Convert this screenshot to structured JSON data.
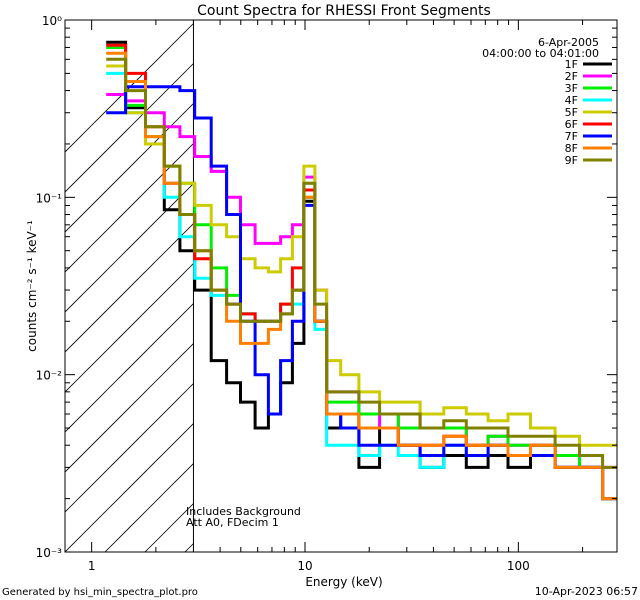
{
  "chart_data": {
    "type": "line",
    "title": "Count Spectra for RHESSI Front Segments",
    "xlabel": "Energy (keV)",
    "ylabel": "counts cm⁻² s⁻¹ keV⁻¹",
    "x_scale": "log",
    "y_scale": "log",
    "xlim": [
      0.75,
      290
    ],
    "ylim": [
      0.001,
      1.0
    ],
    "x_ticks": [
      {
        "value": 1,
        "label": "1"
      },
      {
        "value": 10,
        "label": "10"
      },
      {
        "value": 100,
        "label": "100"
      }
    ],
    "y_ticks": [
      {
        "value": 1,
        "label": "10⁰"
      },
      {
        "value": 0.1,
        "label": "10⁻¹"
      },
      {
        "value": 0.01,
        "label": "10⁻²"
      },
      {
        "value": 0.001,
        "label": "10⁻³"
      }
    ],
    "date": "6-Apr-2005",
    "time_range": "04:00:00 to 04:01:00",
    "annotations": [
      "Includes Background",
      "Att A0, FDecim 1"
    ],
    "attenuator_edge_kev": 3.0,
    "footer_left": "Generated by hsi_min_spectra_plot.pro",
    "footer_right": "10-Apr-2023 06:57",
    "series": [
      {
        "name": "1F",
        "color": "#000000",
        "x": [
          1.3,
          1.6,
          2.0,
          2.4,
          2.8,
          3.3,
          4.0,
          4.6,
          5.4,
          6.3,
          7.2,
          8.2,
          9.3,
          10.5,
          11.8,
          13.5,
          16,
          20,
          25,
          30,
          40,
          50,
          65,
          80,
          100,
          130,
          170,
          220,
          280
        ],
        "y": [
          0.75,
          0.32,
          0.2,
          0.085,
          0.05,
          0.03,
          0.012,
          0.009,
          0.007,
          0.005,
          0.006,
          0.009,
          0.015,
          0.095,
          0.02,
          0.005,
          0.006,
          0.003,
          0.005,
          0.004,
          0.003,
          0.0035,
          0.003,
          0.0035,
          0.003,
          0.004,
          0.003,
          0.003,
          0.002
        ]
      },
      {
        "name": "2F",
        "color": "#ff00ff",
        "x": [
          1.3,
          1.6,
          2.0,
          2.4,
          2.8,
          3.3,
          4.0,
          4.6,
          5.4,
          6.3,
          7.2,
          8.2,
          9.3,
          10.5,
          11.8,
          13.5,
          16,
          20,
          25,
          30,
          40,
          50,
          65,
          80,
          100,
          130,
          170,
          220,
          280
        ],
        "y": [
          0.38,
          0.35,
          0.3,
          0.25,
          0.22,
          0.17,
          0.14,
          0.1,
          0.07,
          0.055,
          0.055,
          0.06,
          0.07,
          0.13,
          0.03,
          0.008,
          0.008,
          0.006,
          0.005,
          0.006,
          0.005,
          0.005,
          0.004,
          0.0045,
          0.004,
          0.004,
          0.0035,
          0.003,
          0.003
        ]
      },
      {
        "name": "3F",
        "color": "#00ee00",
        "x": [
          1.3,
          1.6,
          2.0,
          2.4,
          2.8,
          3.3,
          4.0,
          4.6,
          5.4,
          6.3,
          7.2,
          8.2,
          9.3,
          10.5,
          11.8,
          13.5,
          16,
          20,
          25,
          30,
          40,
          50,
          65,
          80,
          100,
          130,
          170,
          220,
          280
        ],
        "y": [
          0.7,
          0.33,
          0.22,
          0.15,
          0.12,
          0.07,
          0.04,
          0.028,
          0.022,
          0.02,
          0.02,
          0.025,
          0.03,
          0.1,
          0.02,
          0.007,
          0.007,
          0.006,
          0.006,
          0.005,
          0.005,
          0.005,
          0.004,
          0.0045,
          0.004,
          0.004,
          0.0035,
          0.003,
          0.002
        ]
      },
      {
        "name": "4F",
        "color": "#00ffff",
        "x": [
          1.3,
          1.6,
          2.0,
          2.4,
          2.8,
          3.3,
          4.0,
          4.6,
          5.4,
          6.3,
          7.2,
          8.2,
          9.3,
          10.5,
          11.8,
          13.5,
          16,
          20,
          25,
          30,
          40,
          50,
          65,
          80,
          100,
          130,
          170,
          220,
          280
        ],
        "y": [
          0.5,
          0.3,
          0.2,
          0.1,
          0.06,
          0.035,
          0.028,
          0.025,
          0.022,
          0.02,
          0.02,
          0.022,
          0.025,
          0.12,
          0.018,
          0.004,
          0.004,
          0.0035,
          0.004,
          0.0035,
          0.003,
          0.004,
          0.0035,
          0.004,
          0.0035,
          0.004,
          0.003,
          0.003,
          0.002
        ]
      },
      {
        "name": "5F",
        "color": "#cccc00",
        "x": [
          1.3,
          1.6,
          2.0,
          2.4,
          2.8,
          3.3,
          4.0,
          4.6,
          5.4,
          6.3,
          7.2,
          8.2,
          9.3,
          10.5,
          11.8,
          13.5,
          16,
          20,
          25,
          30,
          40,
          50,
          65,
          80,
          100,
          130,
          170,
          220,
          280
        ],
        "y": [
          0.55,
          0.3,
          0.2,
          0.15,
          0.12,
          0.09,
          0.07,
          0.06,
          0.045,
          0.04,
          0.038,
          0.045,
          0.06,
          0.15,
          0.03,
          0.012,
          0.01,
          0.008,
          0.007,
          0.007,
          0.006,
          0.0065,
          0.006,
          0.0055,
          0.006,
          0.005,
          0.0045,
          0.004,
          0.004
        ]
      },
      {
        "name": "6F",
        "color": "#ff0000",
        "x": [
          1.3,
          1.6,
          2.0,
          2.4,
          2.8,
          3.3,
          4.0,
          4.6,
          5.4,
          6.3,
          7.2,
          8.2,
          9.3,
          10.5,
          11.8,
          13.5,
          16,
          20,
          25,
          30,
          40,
          50,
          65,
          80,
          100,
          130,
          170,
          220,
          280
        ],
        "y": [
          0.72,
          0.5,
          0.25,
          0.12,
          0.08,
          0.045,
          0.03,
          0.025,
          0.022,
          0.02,
          0.02,
          0.025,
          0.04,
          0.11,
          0.02,
          0.006,
          0.006,
          0.005,
          0.005,
          0.004,
          0.004,
          0.0045,
          0.004,
          0.004,
          0.0035,
          0.004,
          0.003,
          0.003,
          0.002
        ]
      },
      {
        "name": "7F",
        "color": "#0000ff",
        "x": [
          1.3,
          1.6,
          2.0,
          2.4,
          2.8,
          3.3,
          4.0,
          4.6,
          5.4,
          6.3,
          7.2,
          8.2,
          9.3,
          10.5,
          11.8,
          13.5,
          16,
          20,
          25,
          30,
          40,
          50,
          65,
          80,
          100,
          130,
          170,
          220,
          280
        ],
        "y": [
          0.3,
          0.42,
          0.42,
          0.42,
          0.4,
          0.28,
          0.15,
          0.08,
          0.02,
          0.01,
          0.006,
          0.012,
          0.02,
          0.09,
          0.02,
          0.006,
          0.005,
          0.004,
          0.004,
          0.004,
          0.0035,
          0.004,
          0.0035,
          0.004,
          0.0035,
          0.0035,
          0.003,
          0.003,
          0.002
        ]
      },
      {
        "name": "8F",
        "color": "#ff8000",
        "x": [
          1.3,
          1.6,
          2.0,
          2.4,
          2.8,
          3.3,
          4.0,
          4.6,
          5.4,
          6.3,
          7.2,
          8.2,
          9.3,
          10.5,
          11.8,
          13.5,
          16,
          20,
          25,
          30,
          40,
          50,
          65,
          80,
          100,
          130,
          170,
          220,
          280
        ],
        "y": [
          0.65,
          0.45,
          0.22,
          0.12,
          0.08,
          0.05,
          0.03,
          0.02,
          0.015,
          0.015,
          0.018,
          0.022,
          0.03,
          0.1,
          0.02,
          0.006,
          0.006,
          0.005,
          0.005,
          0.004,
          0.004,
          0.0045,
          0.004,
          0.004,
          0.0035,
          0.004,
          0.003,
          0.003,
          0.002
        ]
      },
      {
        "name": "9F",
        "color": "#808000",
        "x": [
          1.3,
          1.6,
          2.0,
          2.4,
          2.8,
          3.3,
          4.0,
          4.6,
          5.4,
          6.3,
          7.2,
          8.2,
          9.3,
          10.5,
          11.8,
          13.5,
          16,
          20,
          25,
          30,
          40,
          50,
          65,
          80,
          100,
          130,
          170,
          220,
          280
        ],
        "y": [
          0.6,
          0.4,
          0.25,
          0.15,
          0.08,
          0.05,
          0.03,
          0.025,
          0.02,
          0.02,
          0.02,
          0.022,
          0.03,
          0.12,
          0.025,
          0.008,
          0.008,
          0.007,
          0.006,
          0.006,
          0.005,
          0.0055,
          0.005,
          0.005,
          0.0045,
          0.0045,
          0.004,
          0.0035,
          0.003
        ]
      }
    ]
  }
}
